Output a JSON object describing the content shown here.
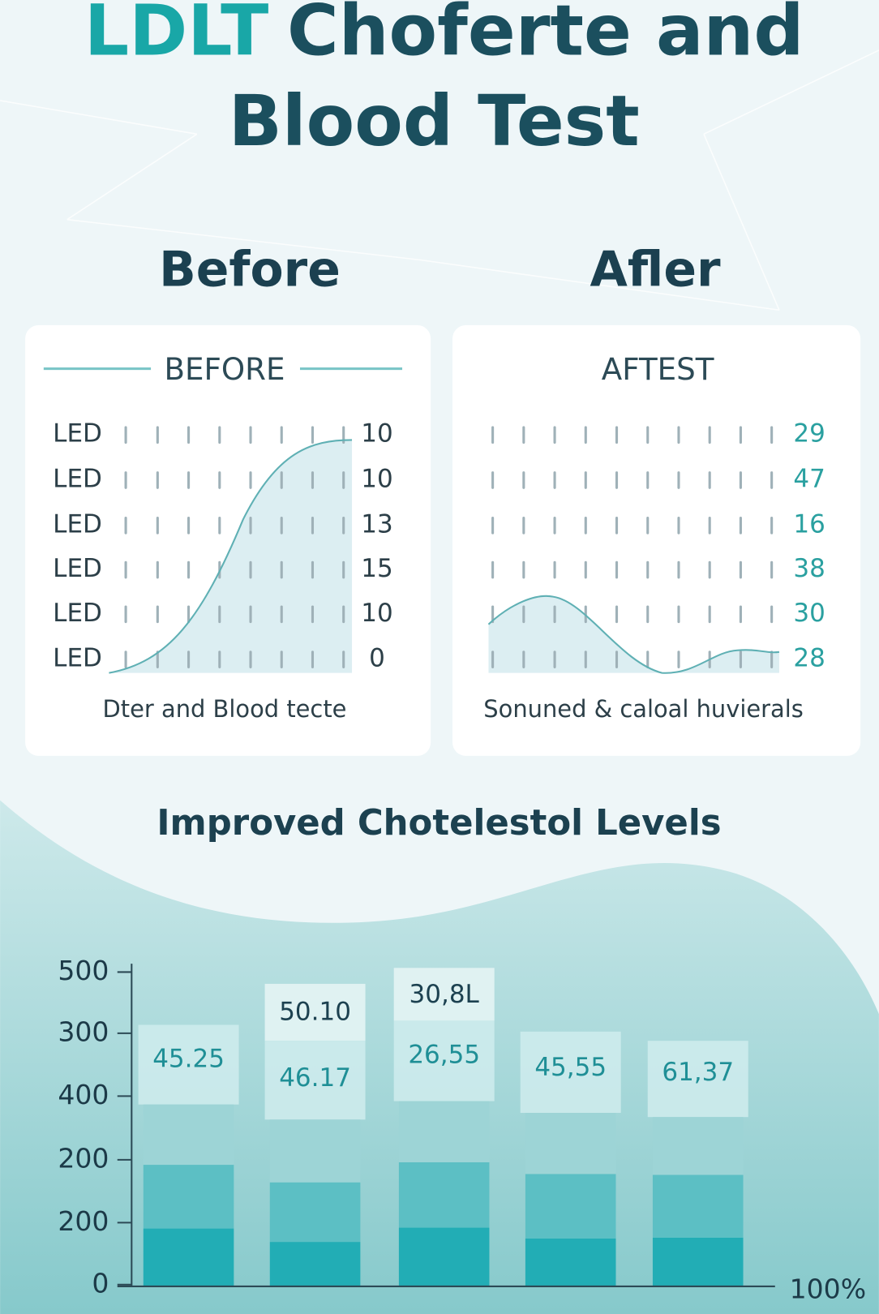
{
  "header": {
    "title_accent": "LDLT",
    "title_rest": "Choferte and",
    "title_line2": "Blood Test"
  },
  "before": {
    "heading": "Before",
    "card_title": "BEFORE",
    "row_labels": [
      "LED",
      "LED",
      "LED",
      "LED",
      "LED",
      "LED"
    ],
    "right_labels": [
      "10",
      "10",
      "13",
      "15",
      "10",
      "0"
    ],
    "caption": "Dter and Blood tecte"
  },
  "after": {
    "heading": "Afler",
    "card_title": "AFTEST",
    "right_labels": [
      "29",
      "47",
      "16",
      "38",
      "30",
      "28"
    ],
    "caption": "Sonuned & caloal huvierals"
  },
  "levels": {
    "title": "Improved Chotelestol Levels",
    "axis_labels": [
      "500",
      "300",
      "400",
      "200",
      "200",
      "0"
    ],
    "axis_end_label": "100%",
    "bars": [
      {
        "labels": [
          "45.25"
        ]
      },
      {
        "labels": [
          "50.10",
          "46.17"
        ]
      },
      {
        "labels": [
          "30,8L",
          "26,55"
        ]
      },
      {
        "labels": [
          "45,55"
        ]
      },
      {
        "labels": [
          "61,37"
        ]
      }
    ]
  }
}
